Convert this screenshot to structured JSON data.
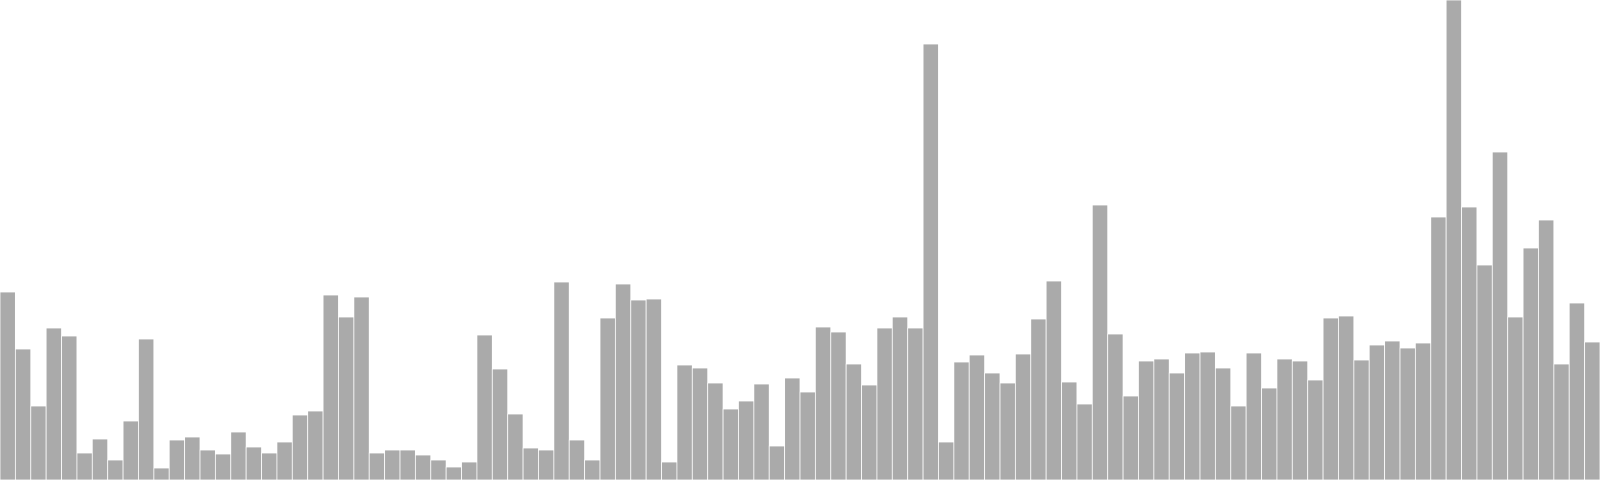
{
  "chart_data": {
    "type": "bar",
    "title": "",
    "xlabel": "",
    "ylabel": "",
    "ylim": [
      0,
      480
    ],
    "grid": false,
    "legend": "none",
    "bar_color": "#aaaaaa",
    "background": "#ffffff",
    "values": [
      188,
      131,
      74,
      152,
      144,
      27,
      41,
      20,
      59,
      141,
      12,
      40,
      43,
      30,
      26,
      48,
      33,
      27,
      38,
      65,
      69,
      185,
      163,
      183,
      27,
      30,
      30,
      25,
      20,
      13,
      18,
      145,
      111,
      66,
      32,
      30,
      198,
      40,
      20,
      162,
      196,
      180,
      181,
      18,
      115,
      112,
      97,
      71,
      79,
      96,
      34,
      102,
      88,
      153,
      148,
      116,
      95,
      152,
      163,
      152,
      436,
      38,
      118,
      125,
      107,
      97,
      126,
      161,
      199,
      98,
      76,
      275,
      146,
      84,
      119,
      121,
      107,
      127,
      128,
      112,
      74,
      127,
      92,
      121,
      119,
      100,
      162,
      164,
      120,
      135,
      139,
      132,
      137,
      263,
      480,
      273,
      215,
      328,
      163,
      232,
      260,
      116,
      177,
      138
    ]
  }
}
